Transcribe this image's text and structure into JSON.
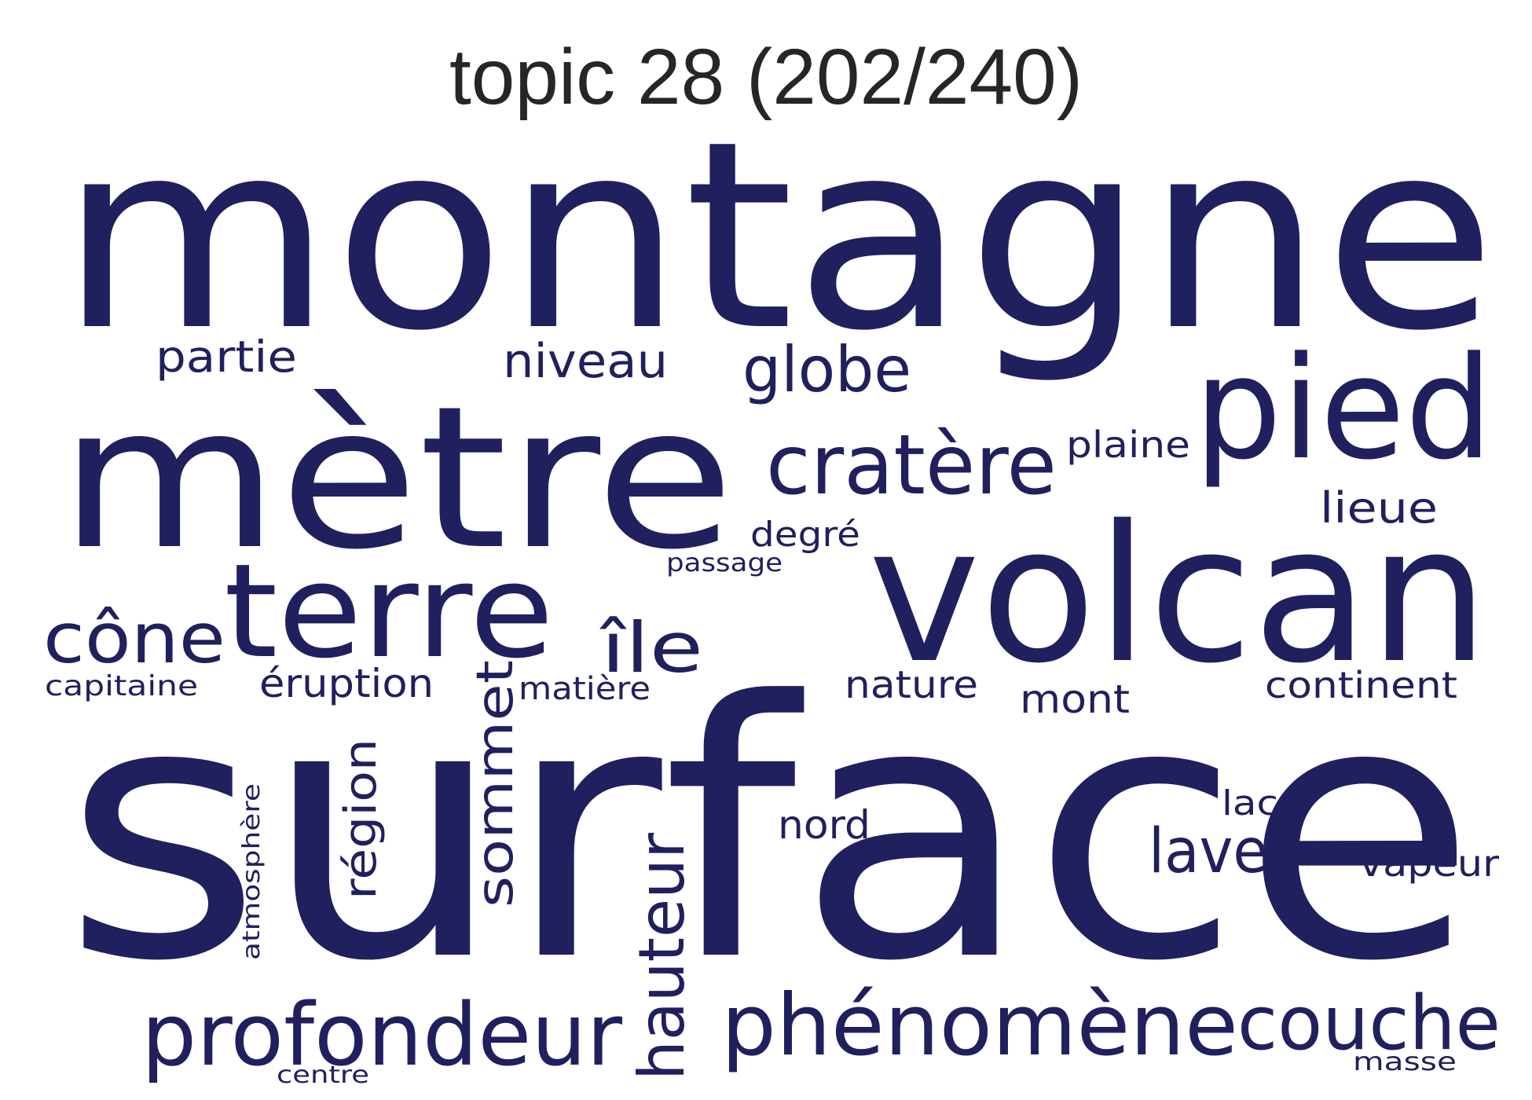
{
  "figure": {
    "title": "topic 28 (202/240)",
    "word_color": "#20205f",
    "background": "#ffffff"
  },
  "words": {
    "montagne": "montagne",
    "surface": "surface",
    "metre": "mètre",
    "volcan": "volcan",
    "terre": "terre",
    "pied": "pied",
    "cratere": "cratère",
    "phenomene": "phénomène",
    "profondeur": "profondeur",
    "couche": "couche",
    "cone": "cône",
    "ile": "île",
    "globe": "globe",
    "niveau": "niveau",
    "partie": "partie",
    "hauteur": "hauteur",
    "sommet": "sommet",
    "lave": "lave",
    "region": "région",
    "eruption": "éruption",
    "nature": "nature",
    "continent": "continent",
    "mont": "mont",
    "lieue": "lieue",
    "plaine": "plaine",
    "degre": "degré",
    "nord": "nord",
    "vapeur": "vapeur",
    "lac": "lac",
    "matiere": "matière",
    "capitaine": "capitaine",
    "passage": "passage",
    "atmosphere": "atmosphère",
    "centre": "centre",
    "masse": "masse"
  }
}
